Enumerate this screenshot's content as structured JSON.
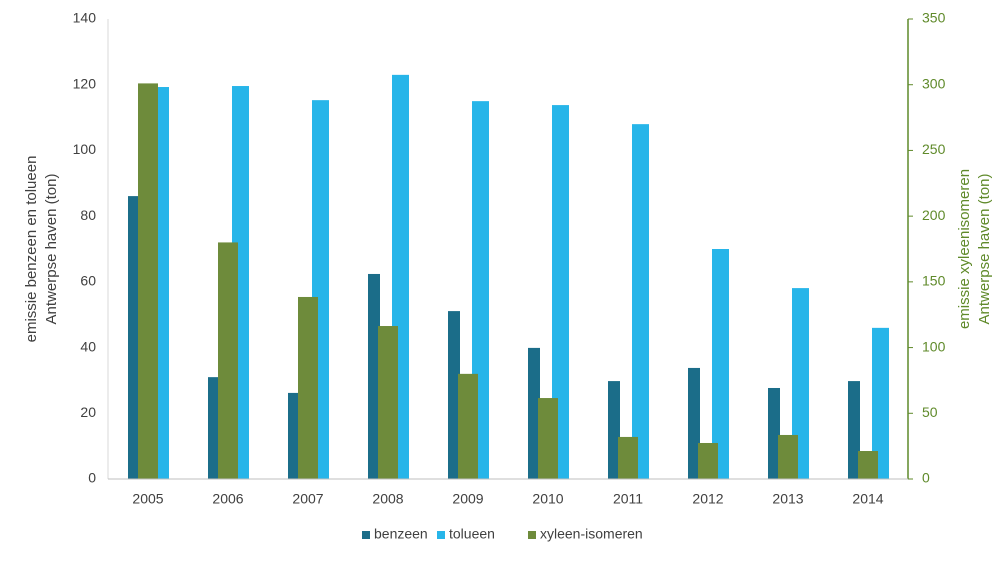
{
  "chart_data": {
    "type": "bar",
    "categories": [
      "2005",
      "2006",
      "2007",
      "2008",
      "2009",
      "2010",
      "2011",
      "2012",
      "2013",
      "2014"
    ],
    "series": [
      {
        "name": "benzeen",
        "color": "#1b6d89",
        "values": [
          86.1,
          31,
          26.2,
          62.4,
          51.1,
          39.9,
          29.8,
          33.8,
          27.7,
          29.8
        ]
      },
      {
        "name": "tolueen",
        "color": "#27b5e9",
        "values": [
          119.3,
          119.6,
          115.3,
          123,
          115,
          113.8,
          108,
          70,
          58.1,
          46
        ]
      },
      {
        "name": "xyleen-isomeren",
        "color": "#6e8b3b",
        "axis": "y2",
        "values": [
          301,
          180,
          138.5,
          116.4,
          80,
          61.6,
          32,
          27.4,
          33.5,
          21.3
        ]
      }
    ],
    "ylabel": [
      "emissie benzeen en tolueen",
      "Antwerpse haven (ton)"
    ],
    "y2label": [
      "emissie xyleenisomeren",
      "Antwerpse haven (ton)"
    ],
    "y2color": "#5f8a2a",
    "ylim": [
      0,
      140
    ],
    "yticks": [
      0,
      20,
      40,
      60,
      80,
      100,
      120,
      140
    ],
    "y2lim": [
      0,
      350
    ],
    "y2ticks": [
      0,
      50,
      100,
      150,
      200,
      250,
      300,
      350
    ],
    "grid": false,
    "legend": "bottom"
  }
}
